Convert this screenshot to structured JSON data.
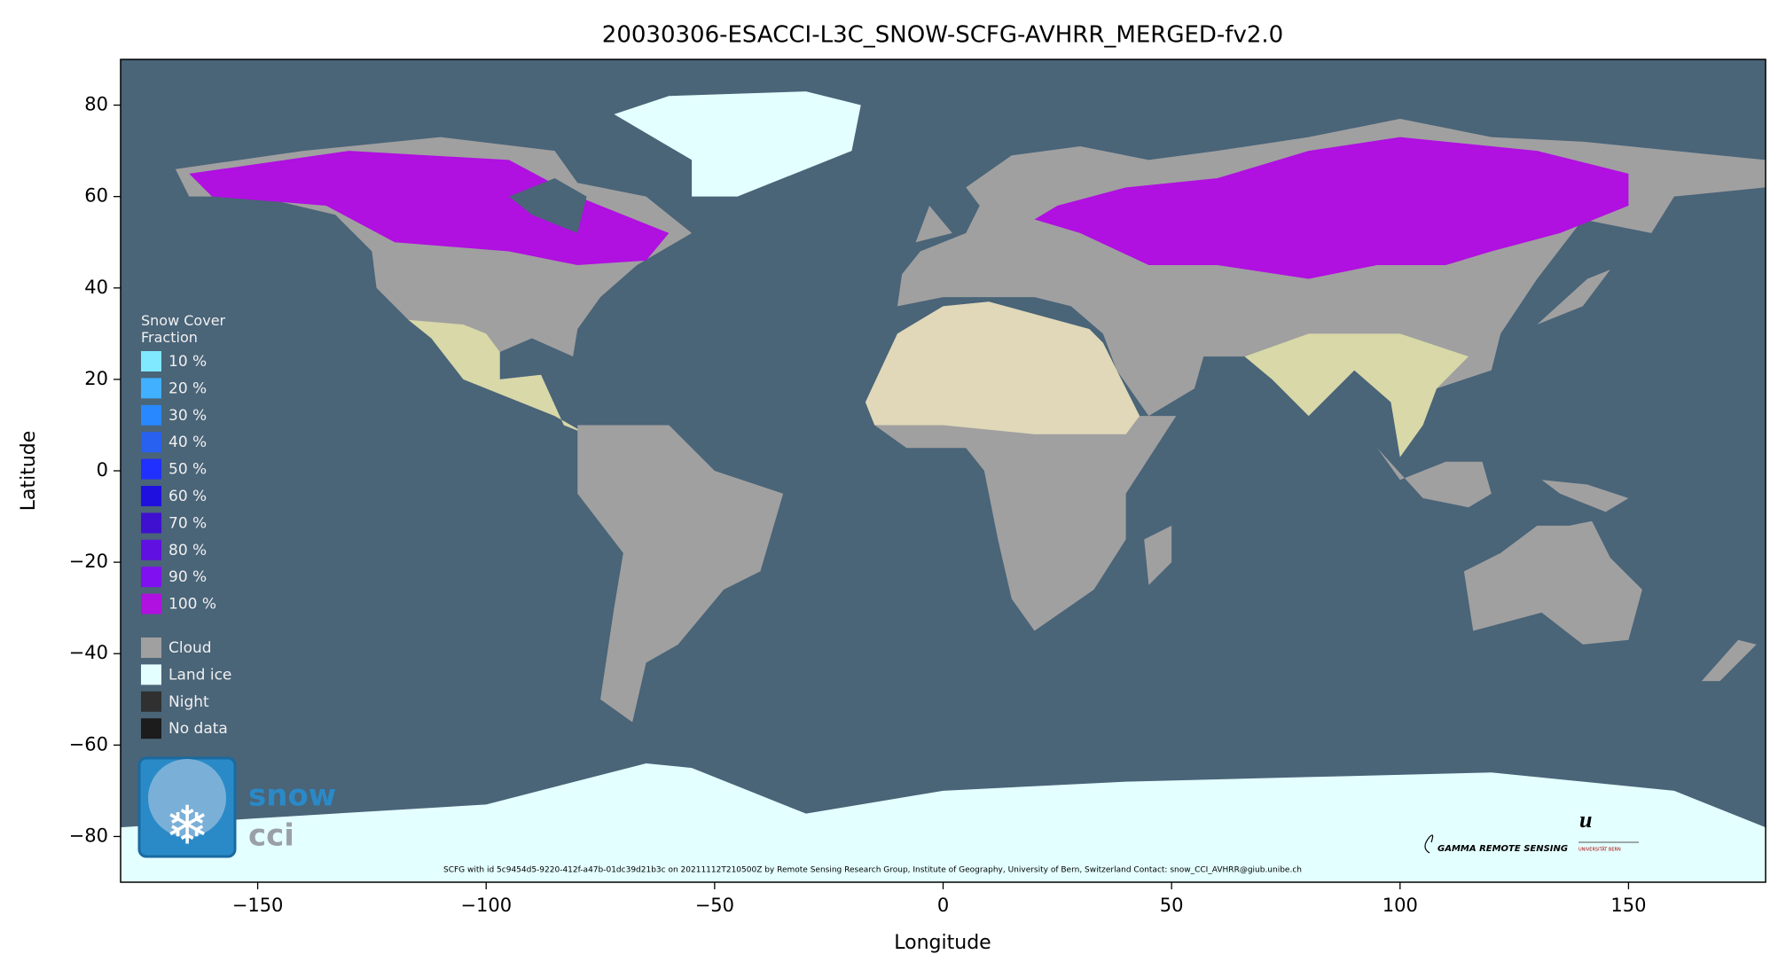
{
  "chart_data": {
    "type": "map",
    "title": "20030306-ESACCI-L3C_SNOW-SCFG-AVHRR_MERGED-fv2.0",
    "xlabel": "Longitude",
    "ylabel": "Latitude",
    "xlim": [
      -180,
      180
    ],
    "ylim": [
      -90,
      90
    ],
    "xticks": [
      {
        "value": -150,
        "label": "−150"
      },
      {
        "value": -100,
        "label": "−100"
      },
      {
        "value": -50,
        "label": "−50"
      },
      0,
      50,
      100,
      150
    ],
    "yticks": [
      {
        "value": -80,
        "label": "−80"
      },
      {
        "value": -60,
        "label": "−60"
      },
      {
        "value": -40,
        "label": "−40"
      },
      {
        "value": -20,
        "label": "−20"
      },
      0,
      20,
      40,
      60,
      80
    ],
    "legend": {
      "title": "Snow Cover Fraction",
      "fraction_items": [
        {
          "label": "10 %",
          "color": "#80e8ff"
        },
        {
          "label": "20 %",
          "color": "#40b0ff"
        },
        {
          "label": "30 %",
          "color": "#2888ff"
        },
        {
          "label": "40 %",
          "color": "#2860f0"
        },
        {
          "label": "50 %",
          "color": "#2030ff"
        },
        {
          "label": "60 %",
          "color": "#2010e0"
        },
        {
          "label": "70 %",
          "color": "#4010d0"
        },
        {
          "label": "80 %",
          "color": "#6010e0"
        },
        {
          "label": "90 %",
          "color": "#8010f0"
        },
        {
          "label": "100 %",
          "color": "#b010e0"
        }
      ],
      "class_items": [
        {
          "label": "Cloud",
          "color": "#a0a0a0"
        },
        {
          "label": "Land ice",
          "color": "#e4ffff"
        },
        {
          "label": "Night",
          "color": "#303030"
        },
        {
          "label": "No data",
          "color": "#1c1c1c"
        }
      ]
    },
    "logo_text": [
      "snow",
      "cci"
    ],
    "partner_text": [
      "GAMMA REMOTE SENSING",
      "u",
      "UNIVERSITÄT BERN"
    ],
    "footer": "SCFG with id 5c9454d5-9220-412f-a47b-01dc39d21b3c on 20211112T210500Z by Remote Sensing Research Group, Institute of Geography, University of Bern, Switzerland  Contact: snow_CCI_AVHRR@giub.unibe.ch"
  }
}
